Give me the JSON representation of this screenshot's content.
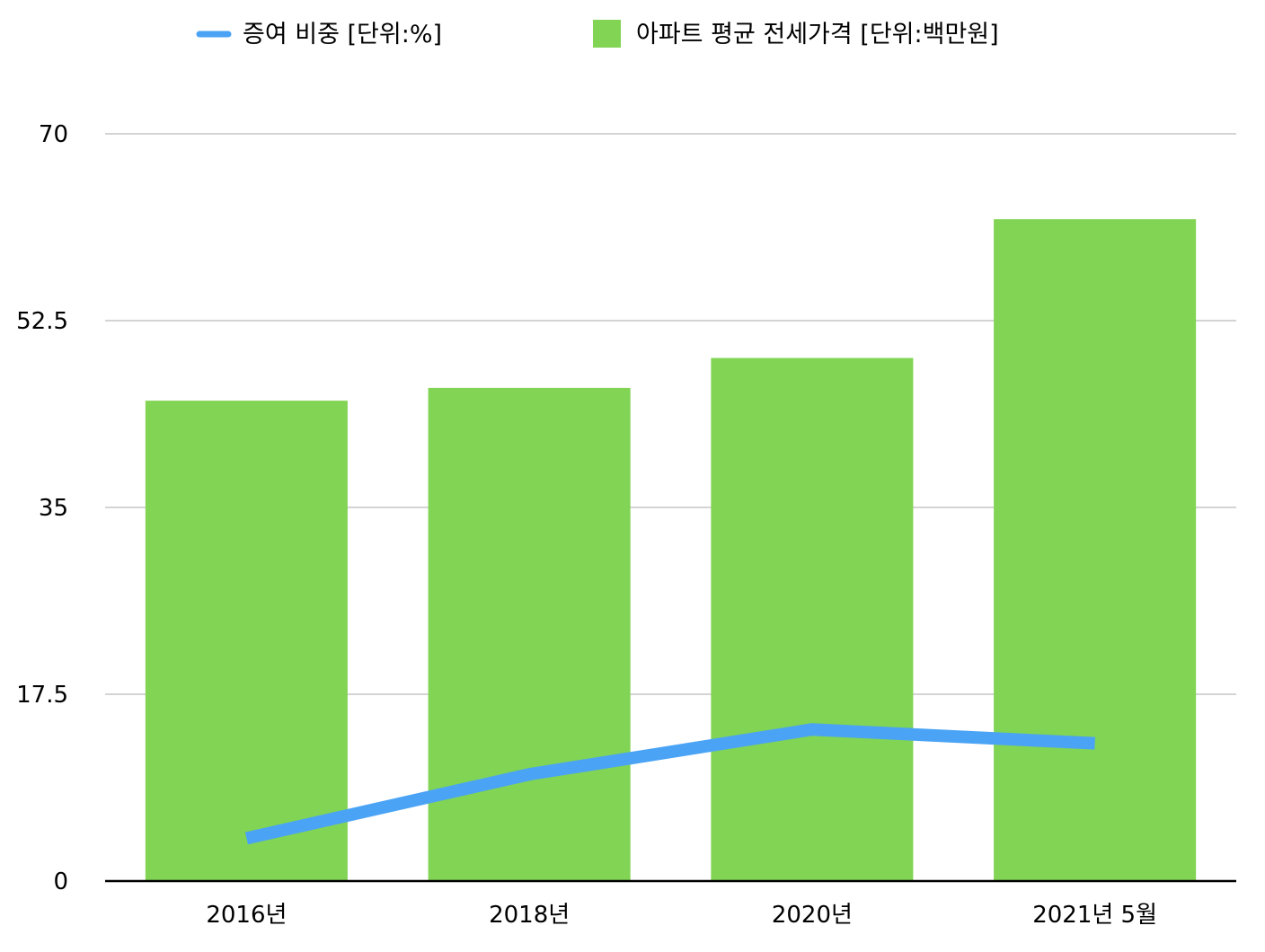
{
  "chart_data": {
    "type": "bar",
    "categories": [
      "2016년",
      "2018년",
      "2020년",
      "2021년 5월"
    ],
    "series": [
      {
        "name": "아파트 평균 전세가격 [단위:백만원]",
        "type": "bar",
        "color": "#82d454",
        "values": [
          45.0,
          46.2,
          49.0,
          62.0
        ]
      },
      {
        "name": "증여 비중 [단위:%]",
        "type": "line",
        "color": "#4aa3f5",
        "values": [
          4.0,
          10.0,
          14.2,
          12.9
        ]
      }
    ],
    "yticks": [
      "0",
      "17.5",
      "35",
      "52.5",
      "70"
    ],
    "ylim": [
      0,
      70
    ],
    "grid": true,
    "legend_position": "top"
  }
}
